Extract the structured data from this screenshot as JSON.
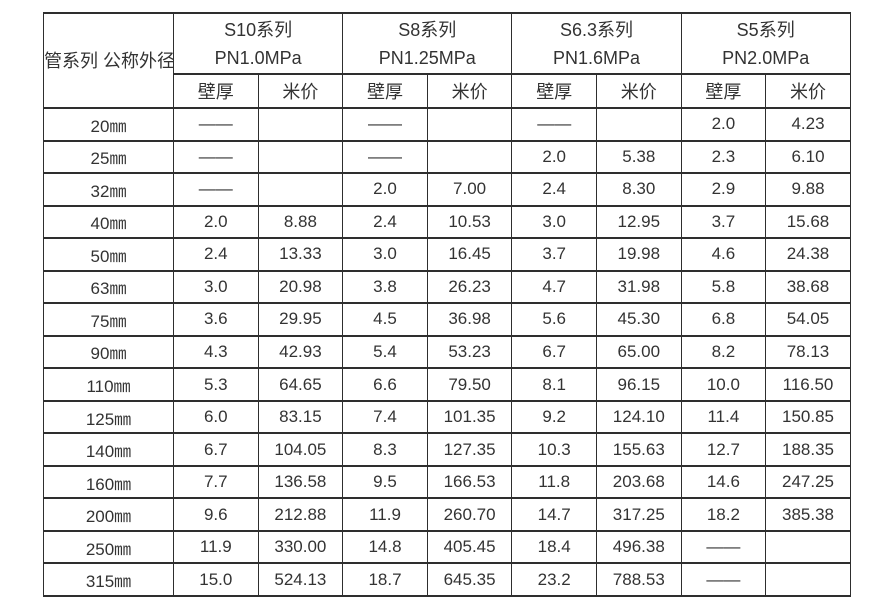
{
  "table": {
    "corner": {
      "line1": "管系列",
      "line2": "公称外径"
    },
    "groups": [
      {
        "series": "S10系列",
        "pressure": "PN1.0MPa"
      },
      {
        "series": "S8系列",
        "pressure": "PN1.25MPa"
      },
      {
        "series": "S6.3系列",
        "pressure": "PN1.6MPa"
      },
      {
        "series": "S5系列",
        "pressure": "PN2.0MPa"
      }
    ],
    "subheaders": [
      "壁厚",
      "米价",
      "壁厚",
      "米价",
      "壁厚",
      "米价",
      "壁厚",
      "米价"
    ],
    "na_marker": "——",
    "rows": [
      {
        "diameter": "20㎜",
        "cells": [
          "——",
          "",
          "——",
          "",
          "——",
          "",
          "2.0",
          "4.23"
        ]
      },
      {
        "diameter": "25㎜",
        "cells": [
          "——",
          "",
          "——",
          "",
          "2.0",
          "5.38",
          "2.3",
          "6.10"
        ]
      },
      {
        "diameter": "32㎜",
        "cells": [
          "——",
          "",
          "2.0",
          "7.00",
          "2.4",
          "8.30",
          "2.9",
          "9.88"
        ]
      },
      {
        "diameter": "40㎜",
        "cells": [
          "2.0",
          "8.88",
          "2.4",
          "10.53",
          "3.0",
          "12.95",
          "3.7",
          "15.68"
        ]
      },
      {
        "diameter": "50㎜",
        "cells": [
          "2.4",
          "13.33",
          "3.0",
          "16.45",
          "3.7",
          "19.98",
          "4.6",
          "24.38"
        ]
      },
      {
        "diameter": "63㎜",
        "cells": [
          "3.0",
          "20.98",
          "3.8",
          "26.23",
          "4.7",
          "31.98",
          "5.8",
          "38.68"
        ]
      },
      {
        "diameter": "75㎜",
        "cells": [
          "3.6",
          "29.95",
          "4.5",
          "36.98",
          "5.6",
          "45.30",
          "6.8",
          "54.05"
        ]
      },
      {
        "diameter": "90㎜",
        "cells": [
          "4.3",
          "42.93",
          "5.4",
          "53.23",
          "6.7",
          "65.00",
          "8.2",
          "78.13"
        ]
      },
      {
        "diameter": "110㎜",
        "cells": [
          "5.3",
          "64.65",
          "6.6",
          "79.50",
          "8.1",
          "96.15",
          "10.0",
          "116.50"
        ]
      },
      {
        "diameter": "125㎜",
        "cells": [
          "6.0",
          "83.15",
          "7.4",
          "101.35",
          "9.2",
          "124.10",
          "11.4",
          "150.85"
        ]
      },
      {
        "diameter": "140㎜",
        "cells": [
          "6.7",
          "104.05",
          "8.3",
          "127.35",
          "10.3",
          "155.63",
          "12.7",
          "188.35"
        ]
      },
      {
        "diameter": "160㎜",
        "cells": [
          "7.7",
          "136.58",
          "9.5",
          "166.53",
          "11.8",
          "203.68",
          "14.6",
          "247.25"
        ]
      },
      {
        "diameter": "200㎜",
        "cells": [
          "9.6",
          "212.88",
          "11.9",
          "260.70",
          "14.7",
          "317.25",
          "18.2",
          "385.38"
        ]
      },
      {
        "diameter": "250㎜",
        "cells": [
          "11.9",
          "330.00",
          "14.8",
          "405.45",
          "18.4",
          "496.38",
          "——",
          ""
        ]
      },
      {
        "diameter": "315㎜",
        "cells": [
          "15.0",
          "524.13",
          "18.7",
          "645.35",
          "23.2",
          "788.53",
          "——",
          ""
        ]
      }
    ],
    "colors": {
      "border": "#2e2e2e",
      "text": "#333333",
      "background": "#ffffff"
    }
  }
}
